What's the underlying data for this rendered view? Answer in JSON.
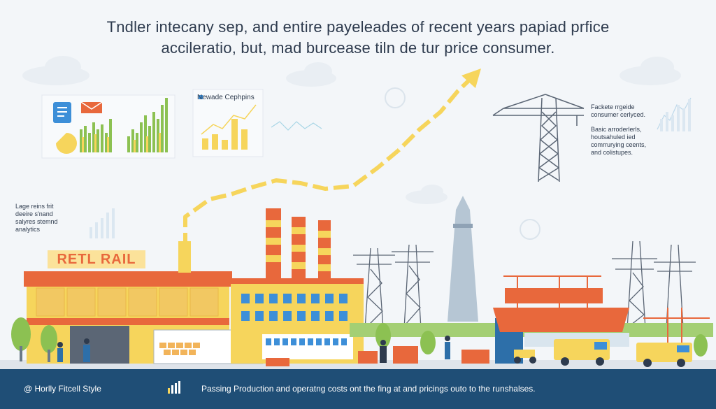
{
  "headline": {
    "line1": "Tndler intecany sep, and entire payeleades of recent years papiad prfice",
    "line2": "accileratio, but, mad burcease tiln de tur price consumer."
  },
  "dashboard": {
    "card_title": "Newade Cephpins"
  },
  "notes": {
    "left": [
      "Lage reins frit",
      "deeire s'nand",
      "salyres stemnd",
      "analytics"
    ],
    "right_top": [
      "Fackete rrgeide",
      "consumer cerlyced."
    ],
    "right_bottom": [
      "Basic arroderlerls,",
      "houtsahuled ied",
      "comrrurying ceents,",
      "and colistupes."
    ]
  },
  "buildings": {
    "retail_sign": "RETL RAIL"
  },
  "footer": {
    "brand": "@ Horlly Fitcell Style",
    "message": "Passing Production and operatng costs ont the fing at and pricings outo to the runshalses."
  },
  "colors": {
    "accent_yellow": "#f6d55c",
    "accent_orange": "#e8683c",
    "green_bars": "#8cc152",
    "footer_bg": "#1f4e76",
    "sky": "#f3f6f9"
  }
}
